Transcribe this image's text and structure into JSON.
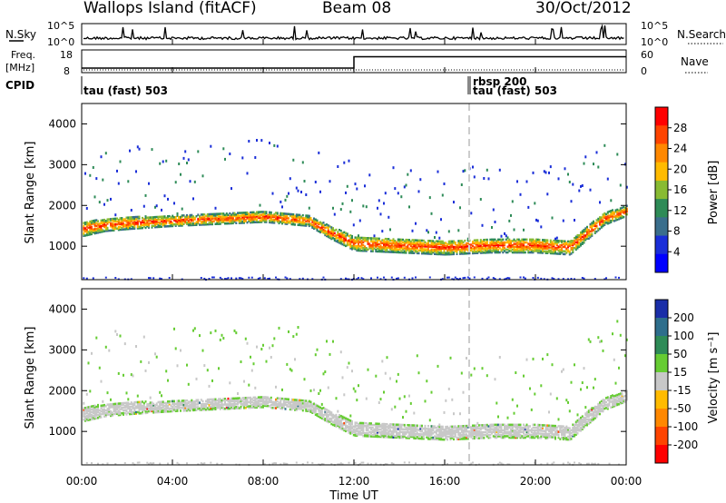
{
  "header": {
    "station": "Wallops Island (fitACF)",
    "beam": "Beam 08",
    "date": "30/Oct/2012"
  },
  "noise_panel": {
    "left_label": "N.Sky",
    "right_label": "N.Search",
    "left_ticks": [
      "10^5",
      "10^0"
    ],
    "right_ticks": [
      "10^5",
      "10^0"
    ]
  },
  "freq_panel": {
    "left_label_1": "Freq.",
    "left_label_2": "[MHz]",
    "right_label": "Nave",
    "left_ticks": [
      "18",
      "8"
    ],
    "right_ticks": [
      "60",
      "0"
    ]
  },
  "cpid": {
    "label": "CPID",
    "segments": [
      "tau (fast) 503",
      "rbsp 200",
      "tau (fast) 503"
    ]
  },
  "power_panel": {
    "ylabel": "Slant Range [km]",
    "cbar_label": "Power [dB]",
    "cbar_ticks": [
      "28",
      "24",
      "20",
      "16",
      "12",
      "8",
      "4"
    ],
    "cbar_colors": [
      "#ff0000",
      "#ff4400",
      "#ff8800",
      "#ffbb00",
      "#88bb33",
      "#2e8b57",
      "#3a6e8c",
      "#1a2ed8",
      "#0000ff"
    ]
  },
  "velocity_panel": {
    "ylabel": "Slant Range [km]",
    "cbar_label": "Velocity [m s⁻¹]",
    "cbar_ticks": [
      "200",
      "100",
      "50",
      "15",
      "-15",
      "-50",
      "-100",
      "-200"
    ],
    "cbar_colors": [
      "#1a2ea8",
      "#2e6e8c",
      "#2e8b57",
      "#66cc33",
      "#c8c8c8",
      "#ffbb00",
      "#ff8800",
      "#ff4400",
      "#ff0000"
    ]
  },
  "xaxis": {
    "label": "Time UT",
    "ticks": [
      "00:00",
      "04:00",
      "08:00",
      "12:00",
      "16:00",
      "20:00",
      "00:00"
    ]
  },
  "yaxis_ticks": [
    "4000",
    "3000",
    "2000",
    "1000"
  ],
  "chart_data": {
    "type": "heatmap",
    "x_range_hours": [
      0,
      24
    ],
    "y_range_km": [
      180,
      4500
    ],
    "freq_step": {
      "hours": [
        0,
        12,
        12,
        24
      ],
      "mhz": [
        10,
        10,
        15,
        15
      ]
    },
    "cpid_change_hour": 17.0,
    "power_band": {
      "hours": [
        0,
        1,
        2,
        4,
        6,
        8,
        10,
        11,
        12,
        14,
        16,
        18,
        20,
        21.5,
        23,
        24
      ],
      "center_km": [
        1450,
        1550,
        1600,
        1650,
        1700,
        1750,
        1650,
        1350,
        1100,
        1050,
        1000,
        1050,
        1050,
        1000,
        1700,
        1900
      ],
      "width_km": [
        350,
        300,
        300,
        250,
        250,
        250,
        250,
        300,
        350,
        350,
        350,
        350,
        350,
        350,
        300,
        250
      ]
    }
  }
}
